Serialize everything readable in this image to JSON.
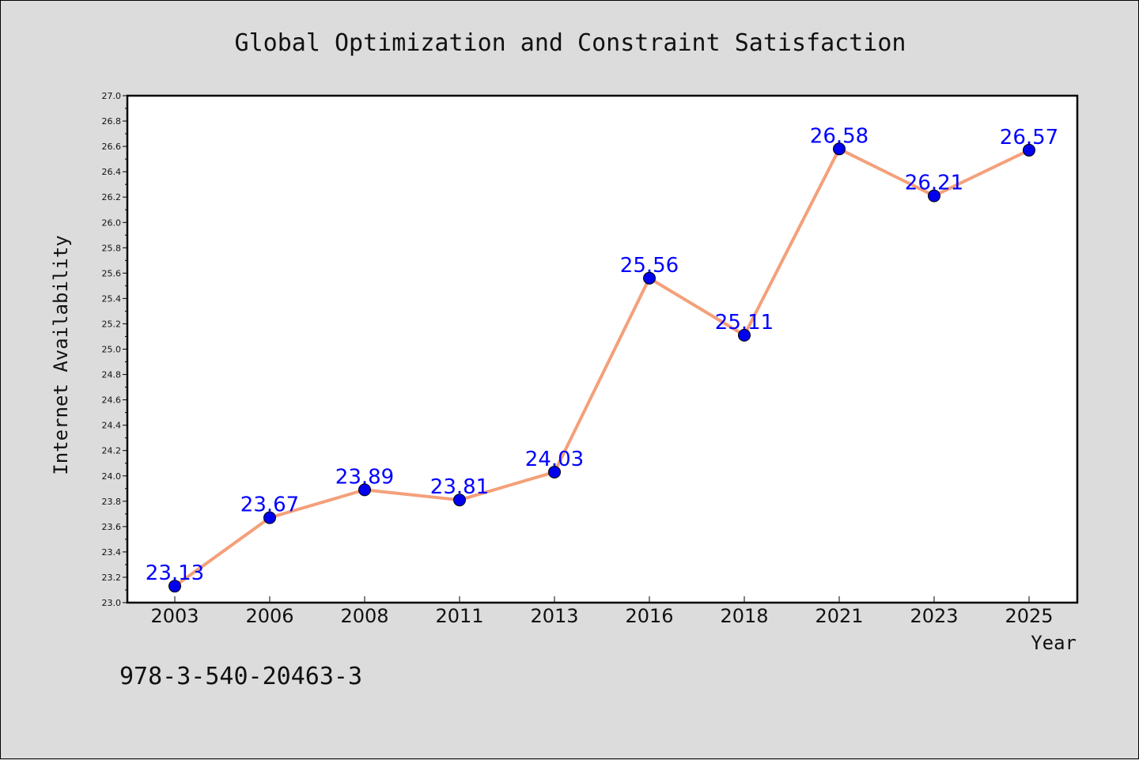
{
  "chart_data": {
    "type": "line",
    "title": "Global Optimization and Constraint Satisfaction",
    "xlabel": "Year",
    "ylabel": "Internet Availability",
    "categories": [
      "2003",
      "2006",
      "2008",
      "2011",
      "2013",
      "2016",
      "2018",
      "2021",
      "2023",
      "2025"
    ],
    "series": [
      {
        "values": [
          23.13,
          23.67,
          23.89,
          23.81,
          24.03,
          25.56,
          25.11,
          26.58,
          26.21,
          26.57
        ],
        "labels": [
          "23.13",
          "23.67",
          "23.89",
          "23.81",
          "24.03",
          "25.56",
          "25.11",
          "26.58",
          "26.21",
          "26.57"
        ],
        "line_color": "#f4a07a",
        "marker_color": "#0000ee"
      }
    ],
    "ylim": [
      23.0,
      27.0
    ],
    "yticks": [
      "23.0",
      "23.2",
      "23.4",
      "23.6",
      "23.8",
      "24.0",
      "24.2",
      "24.4",
      "24.6",
      "24.8",
      "25.0",
      "25.2",
      "25.4",
      "25.6",
      "25.8",
      "26.0",
      "26.2",
      "26.4",
      "26.6",
      "26.8",
      "27.0"
    ],
    "grid": false,
    "label_color": "#0000ff"
  },
  "annotation": "978-3-540-20463-3"
}
